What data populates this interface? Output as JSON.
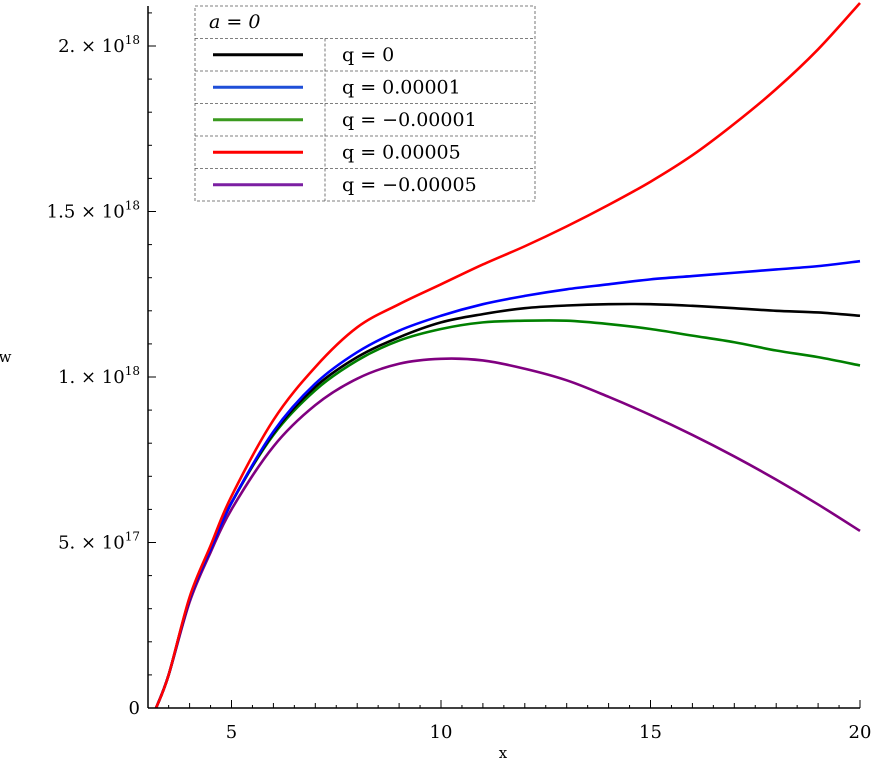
{
  "chart_data": {
    "type": "line",
    "xlabel": "x",
    "ylabel": "w",
    "xlim": [
      3,
      20
    ],
    "ylim": [
      0,
      2e+18
    ],
    "x_ticks": [
      {
        "value": 5,
        "label": "5"
      },
      {
        "value": 10,
        "label": "10"
      },
      {
        "value": 15,
        "label": "15"
      },
      {
        "value": 20,
        "label": "20"
      }
    ],
    "y_ticks": [
      {
        "value": 0,
        "mant": "0",
        "exp": ""
      },
      {
        "value": 5e+17,
        "mant": "5. × 10",
        "exp": "17"
      },
      {
        "value": 1e+18,
        "mant": "1. × 10",
        "exp": "18"
      },
      {
        "value": 1.5e+18,
        "mant": "1.5 × 10",
        "exp": "18"
      },
      {
        "value": 2e+18,
        "mant": "2. × 10",
        "exp": "18"
      }
    ],
    "legend_title": "a = 0",
    "legend_position": "top-left",
    "x": [
      3.2,
      3.5,
      4,
      4.5,
      5,
      6,
      7,
      8,
      9,
      10,
      11,
      12,
      13,
      14,
      15,
      16,
      17,
      18,
      19,
      20
    ],
    "series": [
      {
        "name": "q = 0",
        "legend_label": "q = 0",
        "color": "#000000",
        "values": [
          0,
          1e+17,
          3.3e+17,
          4.8e+17,
          6.2e+17,
          8.3e+17,
          9.7e+17,
          1.06e+18,
          1.12e+18,
          1.165e+18,
          1.19e+18,
          1.208e+18,
          1.216e+18,
          1.22e+18,
          1.22e+18,
          1.215e+18,
          1.208e+18,
          1.2e+18,
          1.195e+18,
          1.185e+18
        ]
      },
      {
        "name": "q = 0.00001",
        "legend_label": "q = 0.00001",
        "color": "#1f4fd8",
        "line_color": "#0000ff",
        "values": [
          0,
          1e+17,
          3.3e+17,
          4.8e+17,
          6.2e+17,
          8.35e+17,
          9.8e+17,
          1.075e+18,
          1.14e+18,
          1.185e+18,
          1.22e+18,
          1.245e+18,
          1.265e+18,
          1.28e+18,
          1.295e+18,
          1.305e+18,
          1.315e+18,
          1.325e+18,
          1.335e+18,
          1.35e+18
        ]
      },
      {
        "name": "q = -0.00001",
        "legend_label": "q = −0.00001",
        "color": "#3a9a1f",
        "line_color": "#008000",
        "values": [
          0,
          1e+17,
          3.3e+17,
          4.8e+17,
          6.2e+17,
          8.25e+17,
          9.6e+17,
          1.05e+18,
          1.11e+18,
          1.145e+18,
          1.165e+18,
          1.17e+18,
          1.17e+18,
          1.16e+18,
          1.145e+18,
          1.125e+18,
          1.105e+18,
          1.08e+18,
          1.06e+18,
          1.035e+18
        ]
      },
      {
        "name": "q = 0.00005",
        "legend_label": "q = 0.00005",
        "color": "#ff0000",
        "values": [
          0,
          1e+17,
          3.35e+17,
          4.9e+17,
          6.4e+17,
          8.7e+17,
          1.03e+18,
          1.15e+18,
          1.22e+18,
          1.28e+18,
          1.34e+18,
          1.395e+18,
          1.455e+18,
          1.52e+18,
          1.59e+18,
          1.67e+18,
          1.765e+18,
          1.87e+18,
          1.99e+18,
          2.13e+18
        ]
      },
      {
        "name": "q = -0.00005",
        "legend_label": "q = −0.00005",
        "color": "#7b1fa2",
        "line_color": "#800080",
        "values": [
          0,
          1e+17,
          3.2e+17,
          4.7e+17,
          6e+17,
          7.9e+17,
          9.15e+17,
          9.95e+17,
          1.04e+18,
          1.055e+18,
          1.05e+18,
          1.025e+18,
          9.9e+17,
          9.4e+17,
          8.85e+17,
          8.25e+17,
          7.6e+17,
          6.9e+17,
          6.15e+17,
          5.35e+17
        ]
      }
    ]
  }
}
